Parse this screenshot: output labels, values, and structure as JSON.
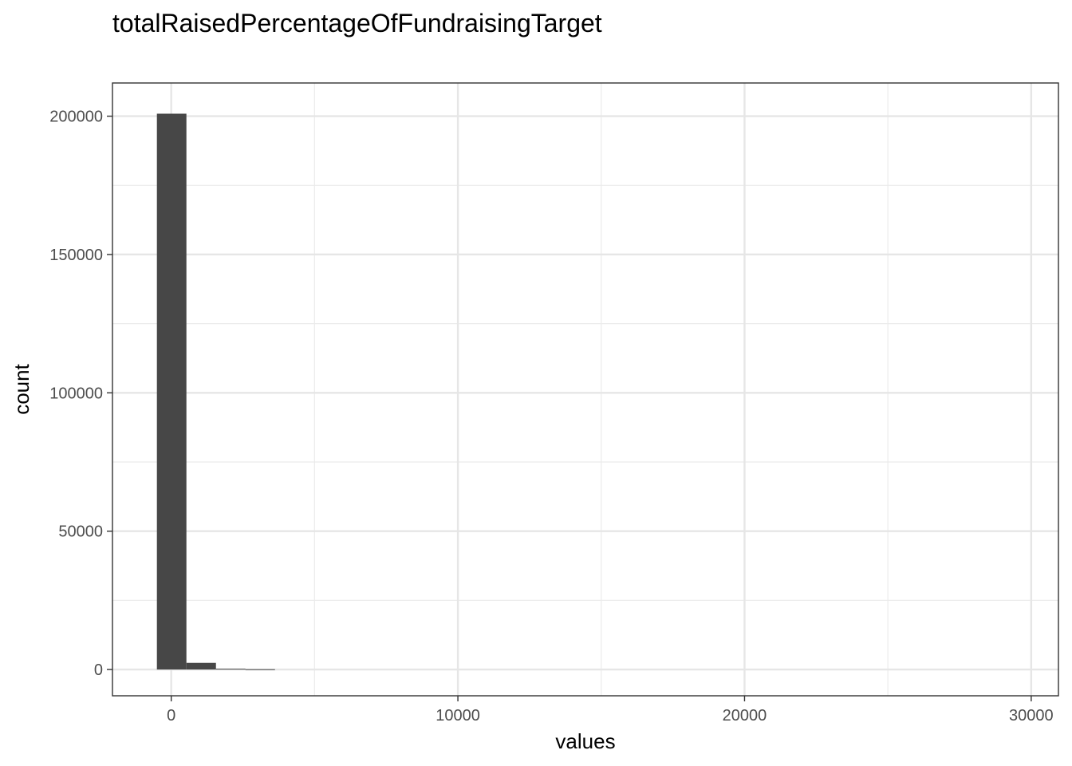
{
  "chart_data": {
    "type": "bar",
    "title": "totalRaisedPercentageOfFundraisingTarget",
    "xlabel": "values",
    "ylabel": "count",
    "xlim": [
      -2050,
      30950
    ],
    "ylim": [
      -9500,
      212000
    ],
    "x_ticks": [
      0,
      10000,
      20000,
      30000
    ],
    "x_tick_labels": [
      "0",
      "10000",
      "20000",
      "30000"
    ],
    "x_minor_ticks": [
      5000,
      15000,
      25000
    ],
    "y_ticks": [
      0,
      50000,
      100000,
      150000,
      200000
    ],
    "y_tick_labels": [
      "0",
      "50000",
      "100000",
      "150000",
      "200000"
    ],
    "y_minor_ticks": [
      25000,
      75000,
      125000,
      175000
    ],
    "grid": true,
    "bar_color": "#474747",
    "bins": [
      {
        "x0": -500,
        "x1": 530,
        "count": 200900
      },
      {
        "x0": 530,
        "x1": 1560,
        "count": 2400
      },
      {
        "x0": 1560,
        "x1": 2590,
        "count": 300
      },
      {
        "x0": 2590,
        "x1": 3620,
        "count": 100
      }
    ]
  }
}
